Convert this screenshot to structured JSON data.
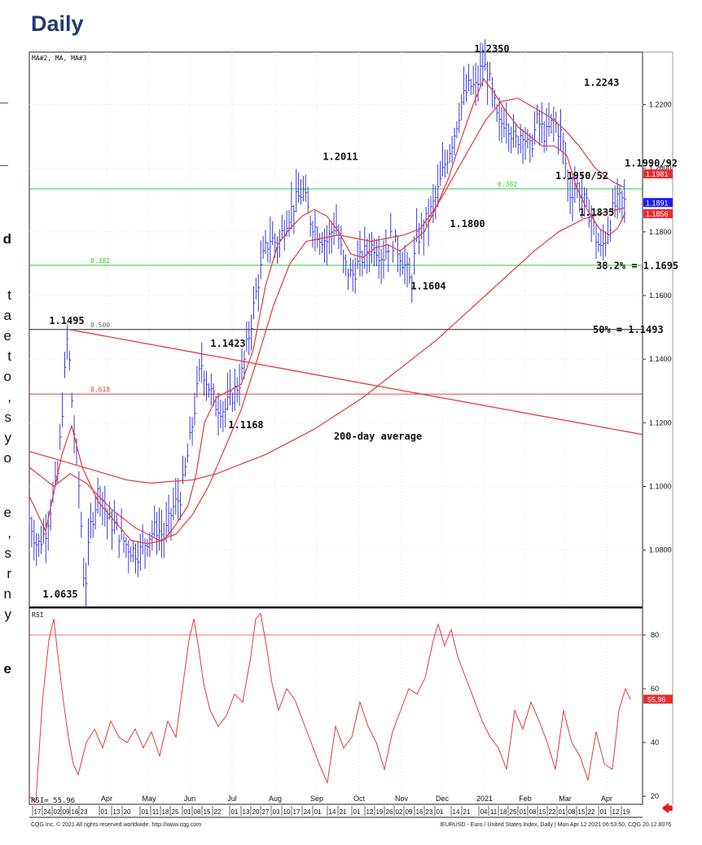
{
  "heading": "Daily",
  "margin_fragments": [
    "d",
    "t",
    "a",
    "e",
    "t",
    "o",
    ",",
    "s",
    "y",
    "o",
    "e",
    ",",
    "s",
    "r",
    "n",
    "y",
    "e"
  ],
  "footer_left": "CQG Inc. © 2021 All rights reserved worldwide. http://www.cqg.com",
  "footer_right": "IEURUSD - Euro / United States Index, Daily | Mon Apr 12 2021 06:53:50, CQG 20.12.8076",
  "colors": {
    "price_bars": "#3b3bdc",
    "ma": "#e23b3b",
    "fib_line": "#33cc33",
    "fib_label": "#2e9e2e",
    "rsi": "#e23b3b",
    "badge_blue": "#1a1aff",
    "badge_red": "#ee2a2a",
    "arrow": "#e31b1b"
  },
  "icons": {
    "nav": "red-left-arrow-icon"
  },
  "chart_data": {
    "type": "line",
    "upper_legend": "MA#2, MA, MA#3",
    "lower_legend": "RSI",
    "price_range": [
      1.062,
      1.2365
    ],
    "price_ticks": [
      "1.2200",
      "1.2000",
      "1.1800",
      "1.1600",
      "1.1400",
      "1.1200",
      "1.1000",
      "1.0800"
    ],
    "price_tick_values": [
      1.22,
      1.2,
      1.18,
      1.16,
      1.14,
      1.12,
      1.1,
      1.08
    ],
    "last_price_badges": [
      {
        "label": "1.1981",
        "value": 1.1981,
        "color": "#ee2a2a"
      },
      {
        "label": "1.1891",
        "value": 1.1891,
        "color": "#1a1aff"
      },
      {
        "label": "1.1856",
        "value": 1.1856,
        "color": "#ee2a2a"
      }
    ],
    "fib_levels": [
      {
        "label": "0.382",
        "value": 1.1695,
        "color": "#33cc33"
      },
      {
        "label": "0.382",
        "value": 1.1935,
        "color": "#33cc33"
      },
      {
        "label": "0.500",
        "value": 1.1493,
        "color": "#222222"
      },
      {
        "label": "0.618",
        "value": 1.129,
        "color": "#e23b3b"
      }
    ],
    "trendline": {
      "from": {
        "t": 49,
        "p": 1.1493
      },
      "to": {
        "t": 753,
        "p": 1.1163
      }
    },
    "price_annotations": [
      {
        "text": "1.2350",
        "t": 568,
        "p": 1.235
      },
      {
        "text": "1.2243",
        "t": 681,
        "p": 1.2243
      },
      {
        "text": "1.2011",
        "t": 382,
        "p": 1.2011
      },
      {
        "text": "1.1990/92",
        "t": 731,
        "p": 1.199
      },
      {
        "text": "1.1950/52",
        "t": 646,
        "p": 1.195
      },
      {
        "text": "1.1835",
        "t": 675,
        "p": 1.1835
      },
      {
        "text": "1.1800",
        "t": 538,
        "p": 1.18
      },
      {
        "text": "38.2% = 1.1695",
        "t": 696,
        "p": 1.1668
      },
      {
        "text": "1.1604",
        "t": 490,
        "p": 1.1604
      },
      {
        "text": "1.1495",
        "t": 46,
        "p": 1.1495
      },
      {
        "text": "1.1423",
        "t": 244,
        "p": 1.1423
      },
      {
        "text": "50% = 1.1493",
        "t": 692,
        "p": 1.1467
      },
      {
        "text": "1.1168",
        "t": 266,
        "p": 1.1168
      },
      {
        "text": "200-day average",
        "t": 428,
        "p": 1.1132
      },
      {
        "text": "1.0635",
        "t": 38,
        "p": 1.0635
      }
    ],
    "price_close": [
      [
        0,
        1.09
      ],
      [
        10,
        1.081
      ],
      [
        20,
        1.086
      ],
      [
        35,
        1.104
      ],
      [
        47,
        1.148
      ],
      [
        54,
        1.12
      ],
      [
        62,
        1.097
      ],
      [
        68,
        1.066
      ],
      [
        75,
        1.087
      ],
      [
        86,
        1.1
      ],
      [
        96,
        1.09
      ],
      [
        106,
        1.087
      ],
      [
        118,
        1.082
      ],
      [
        126,
        1.08
      ],
      [
        135,
        1.079
      ],
      [
        146,
        1.084
      ],
      [
        156,
        1.087
      ],
      [
        166,
        1.084
      ],
      [
        176,
        1.093
      ],
      [
        186,
        1.097
      ],
      [
        196,
        1.112
      ],
      [
        206,
        1.13
      ],
      [
        211,
        1.139
      ],
      [
        218,
        1.133
      ],
      [
        228,
        1.126
      ],
      [
        240,
        1.124
      ],
      [
        250,
        1.129
      ],
      [
        260,
        1.134
      ],
      [
        270,
        1.148
      ],
      [
        280,
        1.163
      ],
      [
        288,
        1.173
      ],
      [
        296,
        1.178
      ],
      [
        306,
        1.176
      ],
      [
        316,
        1.184
      ],
      [
        326,
        1.189
      ],
      [
        336,
        1.193
      ],
      [
        345,
        1.184
      ],
      [
        356,
        1.179
      ],
      [
        366,
        1.177
      ],
      [
        376,
        1.183
      ],
      [
        386,
        1.17
      ],
      [
        396,
        1.166
      ],
      [
        404,
        1.17
      ],
      [
        414,
        1.174
      ],
      [
        424,
        1.176
      ],
      [
        434,
        1.172
      ],
      [
        444,
        1.178
      ],
      [
        454,
        1.174
      ],
      [
        463,
        1.168
      ],
      [
        469,
        1.163
      ],
      [
        475,
        1.177
      ],
      [
        481,
        1.18
      ],
      [
        491,
        1.185
      ],
      [
        501,
        1.192
      ],
      [
        511,
        1.202
      ],
      [
        521,
        1.21
      ],
      [
        531,
        1.221
      ],
      [
        541,
        1.226
      ],
      [
        549,
        1.225
      ],
      [
        556,
        1.233
      ],
      [
        563,
        1.23
      ],
      [
        571,
        1.22
      ],
      [
        576,
        1.213
      ],
      [
        586,
        1.216
      ],
      [
        596,
        1.208
      ],
      [
        606,
        1.212
      ],
      [
        614,
        1.205
      ],
      [
        624,
        1.215
      ],
      [
        634,
        1.21
      ],
      [
        644,
        1.215
      ],
      [
        654,
        1.21
      ],
      [
        660,
        1.198
      ],
      [
        664,
        1.192
      ],
      [
        672,
        1.195
      ],
      [
        680,
        1.19
      ],
      [
        690,
        1.185
      ],
      [
        696,
        1.178
      ],
      [
        702,
        1.174
      ],
      [
        710,
        1.18
      ],
      [
        718,
        1.188
      ],
      [
        726,
        1.19
      ],
      [
        732,
        1.189
      ]
    ],
    "ma_short": [
      [
        0,
        1.097
      ],
      [
        20,
        1.086
      ],
      [
        40,
        1.11
      ],
      [
        52,
        1.119
      ],
      [
        65,
        1.106
      ],
      [
        85,
        1.095
      ],
      [
        105,
        1.089
      ],
      [
        125,
        1.083
      ],
      [
        145,
        1.082
      ],
      [
        165,
        1.083
      ],
      [
        180,
        1.088
      ],
      [
        195,
        1.094
      ],
      [
        205,
        1.104
      ],
      [
        215,
        1.12
      ],
      [
        230,
        1.128
      ],
      [
        245,
        1.13
      ],
      [
        260,
        1.132
      ],
      [
        275,
        1.143
      ],
      [
        290,
        1.163
      ],
      [
        305,
        1.176
      ],
      [
        320,
        1.181
      ],
      [
        335,
        1.185
      ],
      [
        350,
        1.187
      ],
      [
        365,
        1.185
      ],
      [
        380,
        1.18
      ],
      [
        395,
        1.173
      ],
      [
        410,
        1.172
      ],
      [
        425,
        1.175
      ],
      [
        440,
        1.176
      ],
      [
        455,
        1.174
      ],
      [
        470,
        1.177
      ],
      [
        485,
        1.18
      ],
      [
        500,
        1.188
      ],
      [
        515,
        1.197
      ],
      [
        530,
        1.209
      ],
      [
        545,
        1.22
      ],
      [
        558,
        1.228
      ],
      [
        570,
        1.224
      ],
      [
        585,
        1.218
      ],
      [
        600,
        1.213
      ],
      [
        615,
        1.21
      ],
      [
        630,
        1.207
      ],
      [
        645,
        1.207
      ],
      [
        660,
        1.204
      ],
      [
        672,
        1.194
      ],
      [
        685,
        1.187
      ],
      [
        700,
        1.181
      ],
      [
        712,
        1.179
      ],
      [
        722,
        1.181
      ],
      [
        732,
        1.186
      ]
    ],
    "ma_mid": [
      [
        0,
        1.106
      ],
      [
        30,
        1.1
      ],
      [
        50,
        1.104
      ],
      [
        70,
        1.101
      ],
      [
        100,
        1.093
      ],
      [
        130,
        1.087
      ],
      [
        160,
        1.083
      ],
      [
        180,
        1.085
      ],
      [
        200,
        1.091
      ],
      [
        220,
        1.1
      ],
      [
        240,
        1.112
      ],
      [
        260,
        1.124
      ],
      [
        280,
        1.14
      ],
      [
        300,
        1.157
      ],
      [
        320,
        1.17
      ],
      [
        340,
        1.177
      ],
      [
        360,
        1.178
      ],
      [
        380,
        1.179
      ],
      [
        400,
        1.178
      ],
      [
        420,
        1.177
      ],
      [
        440,
        1.178
      ],
      [
        460,
        1.179
      ],
      [
        480,
        1.181
      ],
      [
        500,
        1.188
      ],
      [
        520,
        1.197
      ],
      [
        540,
        1.206
      ],
      [
        560,
        1.215
      ],
      [
        580,
        1.221
      ],
      [
        600,
        1.222
      ],
      [
        620,
        1.219
      ],
      [
        640,
        1.216
      ],
      [
        658,
        1.212
      ],
      [
        675,
        1.207
      ],
      [
        695,
        1.2
      ],
      [
        715,
        1.196
      ],
      [
        730,
        1.194
      ]
    ],
    "ma_200": [
      [
        0,
        1.111
      ],
      [
        40,
        1.108
      ],
      [
        80,
        1.105
      ],
      [
        120,
        1.102
      ],
      [
        150,
        1.101
      ],
      [
        170,
        1.1015
      ],
      [
        200,
        1.102
      ],
      [
        230,
        1.104
      ],
      [
        260,
        1.107
      ],
      [
        290,
        1.11
      ],
      [
        320,
        1.114
      ],
      [
        350,
        1.118
      ],
      [
        380,
        1.123
      ],
      [
        410,
        1.128
      ],
      [
        440,
        1.134
      ],
      [
        470,
        1.14
      ],
      [
        500,
        1.146
      ],
      [
        530,
        1.153
      ],
      [
        560,
        1.16
      ],
      [
        590,
        1.167
      ],
      [
        620,
        1.174
      ],
      [
        650,
        1.18
      ],
      [
        680,
        1.184
      ],
      [
        705,
        1.186
      ],
      [
        730,
        1.1875
      ]
    ],
    "rsi_range": [
      17,
      90
    ],
    "rsi_ticks": [
      "80",
      "60",
      "40",
      "20"
    ],
    "rsi_tick_values": [
      80,
      60,
      40,
      20
    ],
    "rsi_reference": 80,
    "rsi_badge": {
      "label": "55.96",
      "value": 55.96
    },
    "rsi_readout": "RSI=     55.96",
    "rsi": [
      [
        0,
        20
      ],
      [
        8,
        18
      ],
      [
        16,
        55
      ],
      [
        24,
        78
      ],
      [
        30,
        86
      ],
      [
        36,
        70
      ],
      [
        42,
        55
      ],
      [
        48,
        42
      ],
      [
        54,
        32
      ],
      [
        60,
        28
      ],
      [
        70,
        40
      ],
      [
        80,
        45
      ],
      [
        90,
        38
      ],
      [
        100,
        48
      ],
      [
        110,
        42
      ],
      [
        120,
        40
      ],
      [
        130,
        45
      ],
      [
        140,
        38
      ],
      [
        150,
        44
      ],
      [
        160,
        35
      ],
      [
        170,
        48
      ],
      [
        180,
        42
      ],
      [
        188,
        60
      ],
      [
        196,
        78
      ],
      [
        202,
        86
      ],
      [
        208,
        75
      ],
      [
        214,
        62
      ],
      [
        222,
        52
      ],
      [
        232,
        46
      ],
      [
        242,
        50
      ],
      [
        252,
        58
      ],
      [
        262,
        55
      ],
      [
        272,
        72
      ],
      [
        278,
        86
      ],
      [
        284,
        88
      ],
      [
        290,
        78
      ],
      [
        298,
        62
      ],
      [
        306,
        52
      ],
      [
        316,
        60
      ],
      [
        326,
        56
      ],
      [
        336,
        48
      ],
      [
        346,
        40
      ],
      [
        356,
        32
      ],
      [
        366,
        25
      ],
      [
        376,
        46
      ],
      [
        386,
        38
      ],
      [
        396,
        42
      ],
      [
        406,
        55
      ],
      [
        416,
        46
      ],
      [
        426,
        40
      ],
      [
        436,
        30
      ],
      [
        446,
        44
      ],
      [
        456,
        52
      ],
      [
        466,
        60
      ],
      [
        476,
        58
      ],
      [
        486,
        64
      ],
      [
        496,
        78
      ],
      [
        502,
        84
      ],
      [
        510,
        76
      ],
      [
        518,
        82
      ],
      [
        526,
        72
      ],
      [
        536,
        64
      ],
      [
        546,
        56
      ],
      [
        556,
        48
      ],
      [
        566,
        42
      ],
      [
        576,
        38
      ],
      [
        586,
        30
      ],
      [
        596,
        52
      ],
      [
        606,
        45
      ],
      [
        616,
        55
      ],
      [
        626,
        48
      ],
      [
        636,
        40
      ],
      [
        646,
        30
      ],
      [
        656,
        52
      ],
      [
        666,
        40
      ],
      [
        676,
        35
      ],
      [
        686,
        26
      ],
      [
        696,
        44
      ],
      [
        706,
        32
      ],
      [
        716,
        30
      ],
      [
        724,
        52
      ],
      [
        732,
        60
      ],
      [
        738,
        56
      ]
    ],
    "month_labels": [
      "Apr",
      "May",
      "Jun",
      "Jul",
      "Aug",
      "Sep",
      "Oct",
      "Nov",
      "Dec",
      "2021",
      "Feb",
      "Mar",
      "Apr"
    ],
    "month_positions": [
      95,
      147,
      197,
      249,
      302,
      353,
      405,
      457,
      507,
      559,
      609,
      658,
      709
    ],
    "day_labels": [
      "17",
      "24",
      "02",
      "09",
      "16",
      "23",
      "01",
      "13",
      "20",
      "01",
      "11",
      "18",
      "25",
      "01",
      "08",
      "15",
      "22",
      "01",
      "13",
      "20",
      "27",
      "03",
      "10",
      "17",
      "24",
      "01",
      "14",
      "21",
      "01",
      "12",
      "19",
      "26",
      "02",
      "09",
      "16",
      "23",
      "01",
      "14",
      "21",
      "04",
      "11",
      "18",
      "25",
      "01",
      "08",
      "15",
      "22",
      "01",
      "08",
      "15",
      "22",
      "01",
      "12",
      "19"
    ],
    "day_positions": [
      8,
      20,
      32,
      43,
      54,
      65,
      90,
      105,
      118,
      140,
      153,
      165,
      177,
      192,
      204,
      216,
      229,
      250,
      264,
      276,
      288,
      301,
      314,
      326,
      339,
      352,
      370,
      383,
      400,
      416,
      428,
      440,
      452,
      464,
      477,
      489,
      502,
      522,
      535,
      556,
      568,
      580,
      592,
      604,
      616,
      628,
      640,
      652,
      664,
      676,
      688,
      703,
      718,
      731
    ],
    "x_range": [
      0,
      753
    ]
  }
}
